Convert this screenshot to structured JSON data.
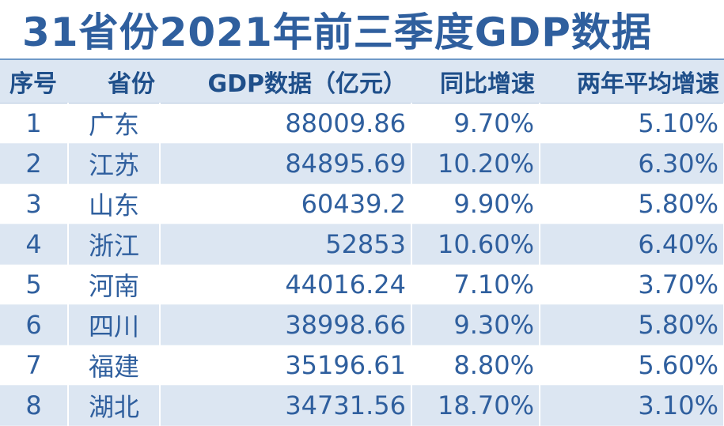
{
  "title": "31省份2021年前三季度GDP数据",
  "columns": [
    "序号",
    "省份",
    "GDP数据（亿元）",
    "同比增速",
    "两年平均增速"
  ],
  "rows": [
    {
      "idx": "1",
      "province": "广东",
      "gdp": "88009.86",
      "yoy": "9.70%",
      "two_year": "5.10%"
    },
    {
      "idx": "2",
      "province": "江苏",
      "gdp": "84895.69",
      "yoy": "10.20%",
      "two_year": "6.30%"
    },
    {
      "idx": "3",
      "province": "山东",
      "gdp": "60439.2",
      "yoy": "9.90%",
      "two_year": "5.80%"
    },
    {
      "idx": "4",
      "province": "浙江",
      "gdp": "52853",
      "yoy": "10.60%",
      "two_year": "6.40%"
    },
    {
      "idx": "5",
      "province": "河南",
      "gdp": "44016.24",
      "yoy": "7.10%",
      "two_year": "3.70%"
    },
    {
      "idx": "6",
      "province": "四川",
      "gdp": "38998.66",
      "yoy": "9.30%",
      "two_year": "5.80%"
    },
    {
      "idx": "7",
      "province": "福建",
      "gdp": "35196.61",
      "yoy": "8.80%",
      "two_year": "5.60%"
    },
    {
      "idx": "8",
      "province": "湖北",
      "gdp": "34731.56",
      "yoy": "18.70%",
      "two_year": "3.10%"
    }
  ],
  "colors": {
    "title": "#2f5f9e",
    "header_bg": "#dce6f2",
    "text": "#2f5f9e",
    "alt_row": "#dce6f2"
  }
}
